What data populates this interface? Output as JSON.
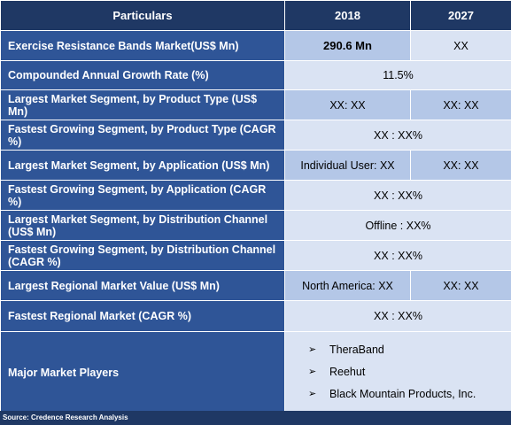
{
  "header": {
    "col_particulars": "Particulars",
    "col_2018": "2018",
    "col_2027": "2027"
  },
  "rows": [
    {
      "label": "Exercise Resistance Bands Market(US$ Mn)",
      "v2018": "290.6 Mn",
      "v2027": "XX"
    },
    {
      "label": "Compounded Annual Growth Rate (%)",
      "merged": "11.5%"
    },
    {
      "label": "Largest Market Segment, by Product Type (US$ Mn)",
      "v2018": "XX: XX",
      "v2027": "XX: XX"
    },
    {
      "label": "Fastest Growing Segment, by Product Type (CAGR %)",
      "merged": "XX : XX%"
    },
    {
      "label": "Largest Market Segment, by Application (US$ Mn)",
      "v2018": "Individual User: XX",
      "v2027": "XX: XX"
    },
    {
      "label": "Fastest Growing Segment, by Application (CAGR %)",
      "merged": "XX : XX%"
    },
    {
      "label": "Largest Market Segment, by Distribution Channel (US$ Mn)",
      "merged": "Offline : XX%"
    },
    {
      "label": "Fastest Growing Segment, by Distribution Channel (CAGR %)",
      "merged": "XX : XX%"
    },
    {
      "label": "Largest Regional Market Value (US$ Mn)",
      "v2018": "North America: XX",
      "v2027": "XX: XX"
    },
    {
      "label": "Fastest Regional Market (CAGR %)",
      "merged": "XX : XX%"
    }
  ],
  "players": {
    "label": "Major Market Players",
    "bullet": "➢",
    "items": [
      "TheraBand",
      "Reehut",
      "Black Mountain Products, Inc."
    ]
  },
  "source": "Source: Credence Research Analysis",
  "colors": {
    "header_bg": "#1f3864",
    "label_bg": "#2f5597",
    "value_bg": "#dae3f3",
    "value_alt_bg": "#b4c7e7"
  }
}
